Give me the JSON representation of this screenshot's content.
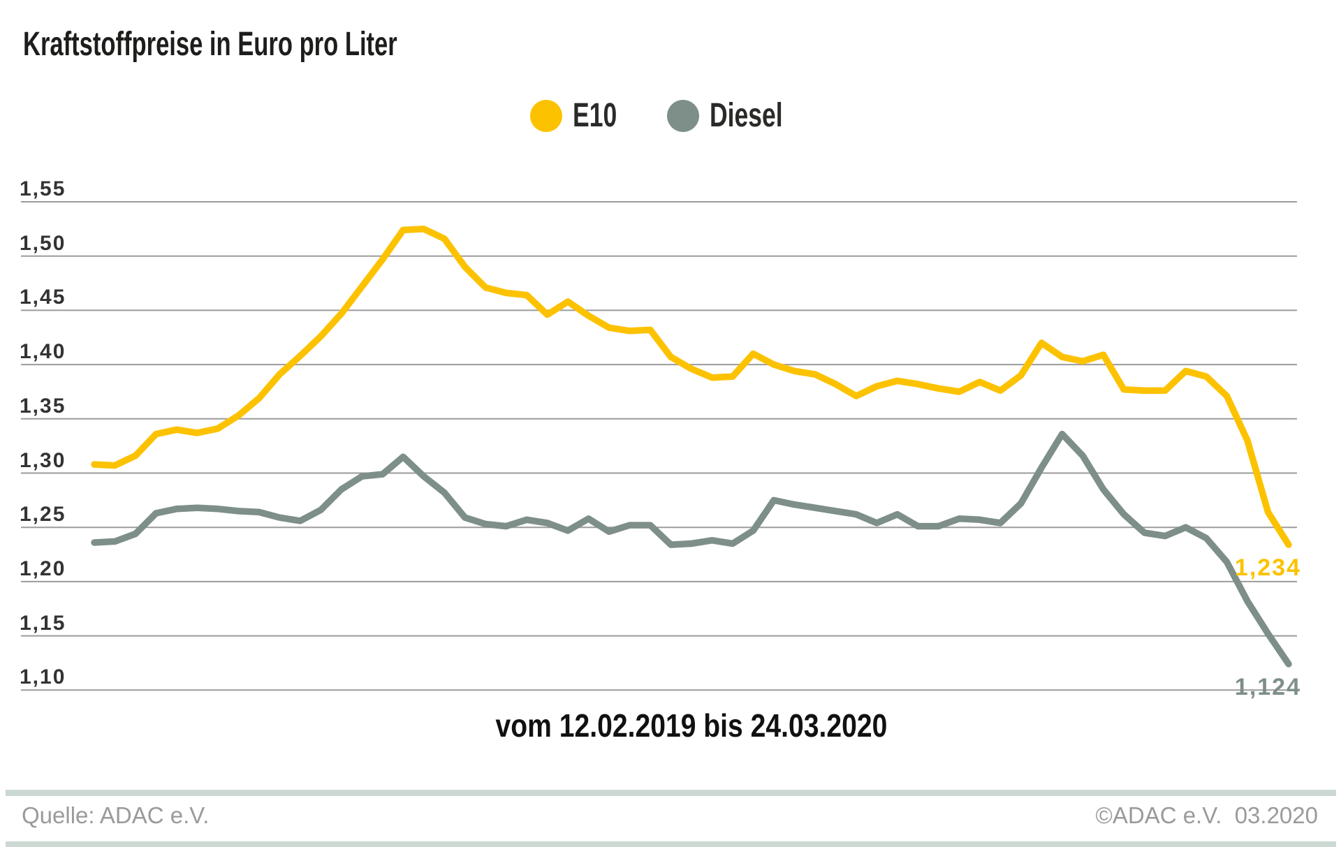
{
  "title": "Kraftstoffpreise in Euro pro Liter",
  "legend": {
    "items": [
      {
        "label": "E10",
        "color": "#fcc200"
      },
      {
        "label": "Diesel",
        "color": "#7d8f88"
      }
    ]
  },
  "chart_data": {
    "type": "line",
    "title": "Kraftstoffpreise in Euro pro Liter",
    "unit": "Euro pro Liter",
    "x_caption": "vom 12.02.2019 bis 24.03.2020",
    "grid": true,
    "legend_position": "top-center",
    "grid_color": "#9b9b9b",
    "ylim": [
      1.08,
      1.58
    ],
    "yticks": [
      1.55,
      1.5,
      1.45,
      1.4,
      1.35,
      1.3,
      1.25,
      1.2,
      1.15,
      1.1
    ],
    "ytick_labels": [
      "1,55",
      "1,50",
      "1,45",
      "1,40",
      "1,35",
      "1,30",
      "1,25",
      "1,20",
      "1,15",
      "1,10"
    ],
    "x_description": "59 weekly values from 12.02.2019 to 24.03.2020",
    "series": [
      {
        "name": "E10",
        "color": "#fcc200",
        "end_label": "1,234",
        "values": [
          1.308,
          1.307,
          1.316,
          1.336,
          1.34,
          1.337,
          1.341,
          1.353,
          1.369,
          1.391,
          1.408,
          1.426,
          1.447,
          1.472,
          1.497,
          1.524,
          1.525,
          1.516,
          1.49,
          1.471,
          1.466,
          1.464,
          1.446,
          1.458,
          1.445,
          1.434,
          1.431,
          1.432,
          1.407,
          1.396,
          1.388,
          1.389,
          1.41,
          1.4,
          1.394,
          1.391,
          1.382,
          1.371,
          1.38,
          1.385,
          1.382,
          1.378,
          1.375,
          1.384,
          1.376,
          1.39,
          1.42,
          1.407,
          1.403,
          1.409,
          1.377,
          1.376,
          1.376,
          1.394,
          1.389,
          1.371,
          1.33,
          1.264,
          1.234
        ]
      },
      {
        "name": "Diesel",
        "color": "#7d8f88",
        "end_label": "1,124",
        "values": [
          1.236,
          1.237,
          1.244,
          1.263,
          1.267,
          1.268,
          1.267,
          1.265,
          1.264,
          1.259,
          1.256,
          1.266,
          1.285,
          1.297,
          1.299,
          1.315,
          1.297,
          1.282,
          1.259,
          1.253,
          1.251,
          1.257,
          1.254,
          1.247,
          1.258,
          1.246,
          1.252,
          1.252,
          1.234,
          1.235,
          1.238,
          1.235,
          1.247,
          1.275,
          1.271,
          1.268,
          1.265,
          1.262,
          1.254,
          1.262,
          1.251,
          1.251,
          1.258,
          1.257,
          1.254,
          1.272,
          1.305,
          1.336,
          1.316,
          1.285,
          1.262,
          1.245,
          1.242,
          1.25,
          1.24,
          1.218,
          1.182,
          1.152,
          1.124
        ]
      }
    ]
  },
  "footer": {
    "source": "Quelle: ADAC e.V.",
    "copyright": "©ADAC e.V.  03.2020"
  }
}
